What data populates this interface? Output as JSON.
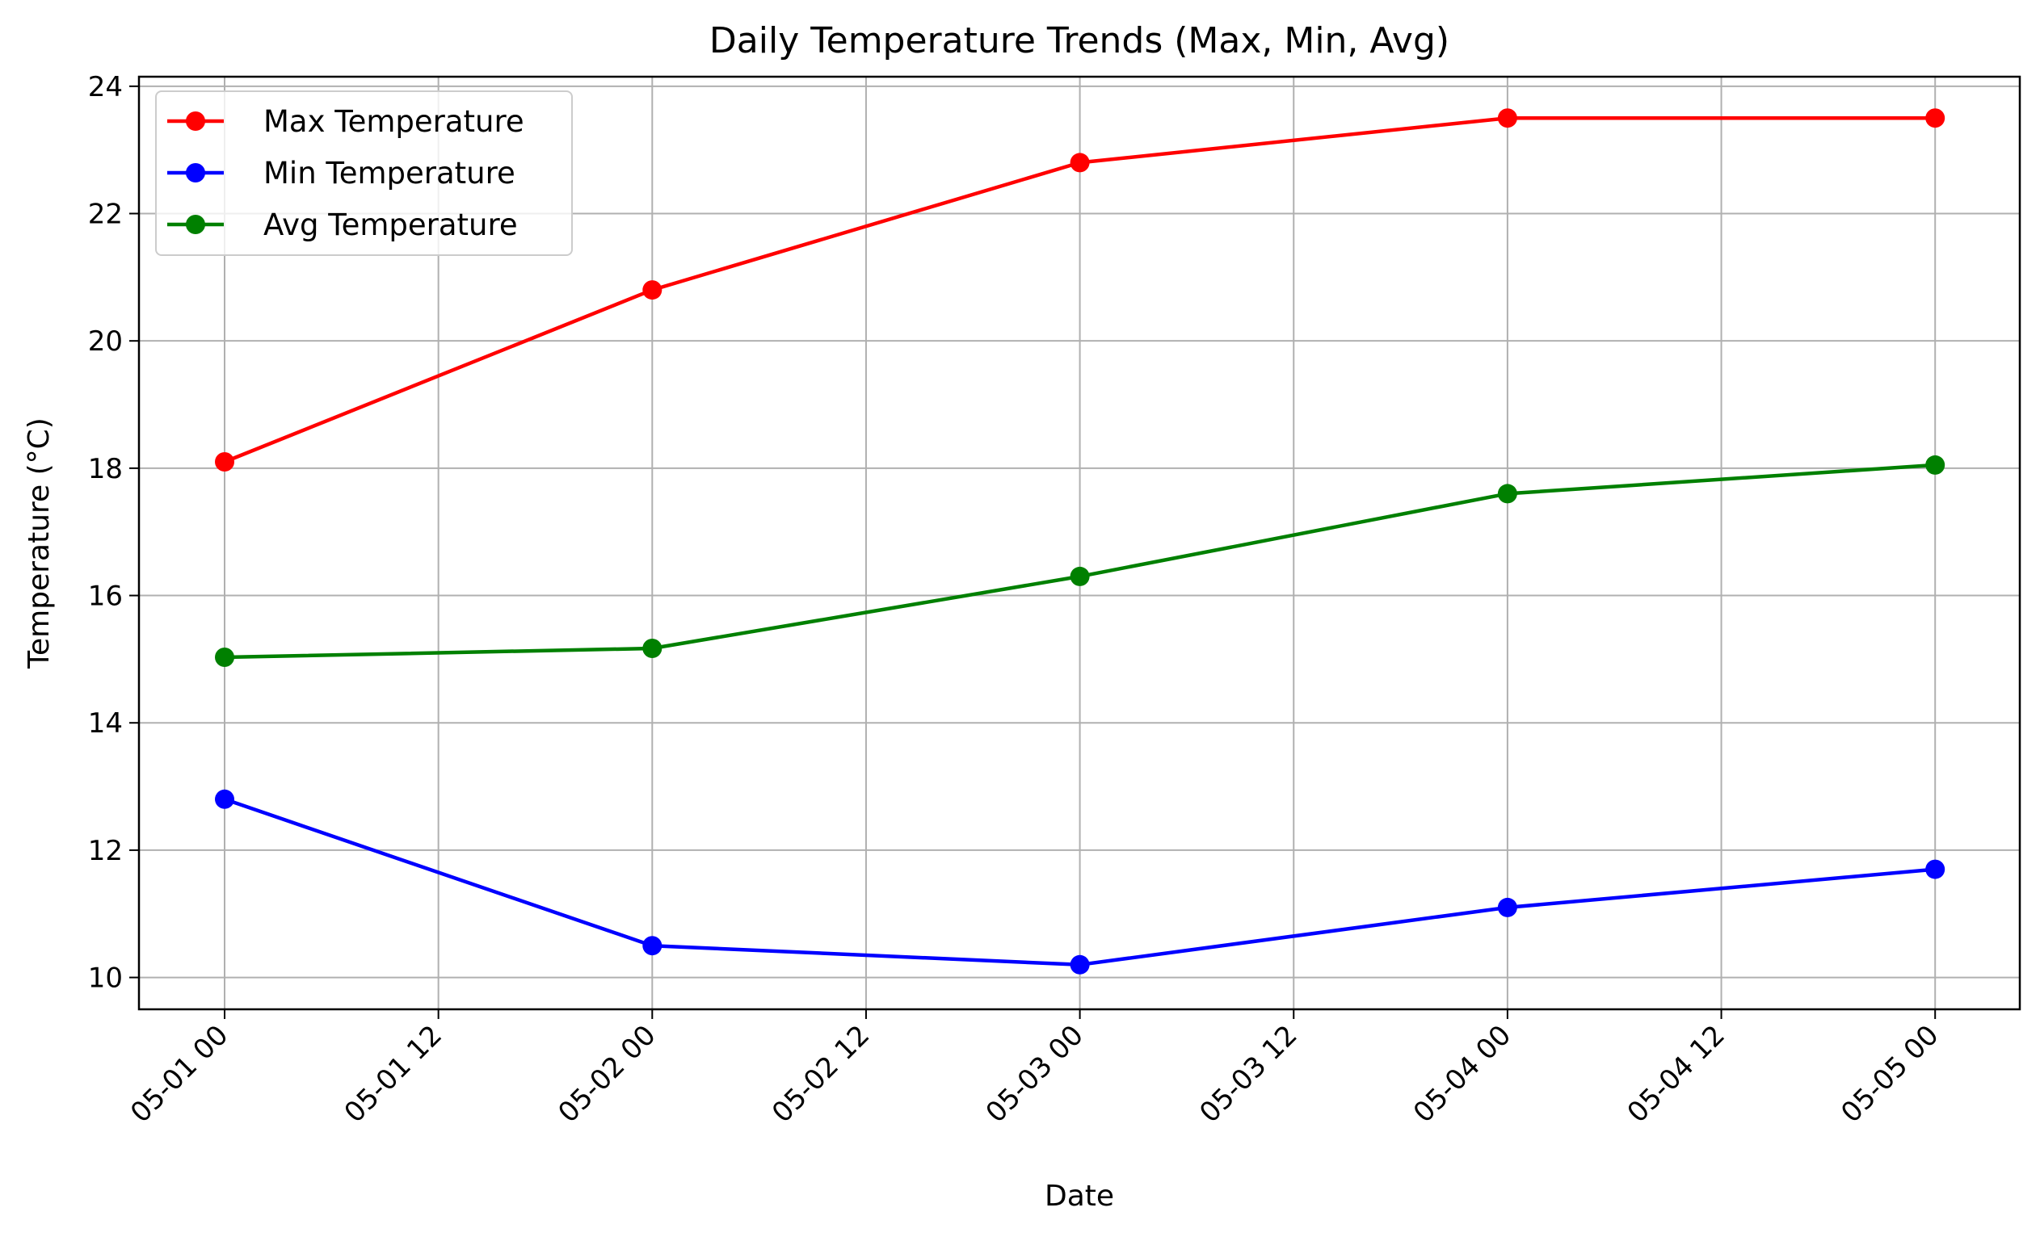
{
  "chart_data": {
    "type": "line",
    "title": "Daily Temperature Trends (Max, Min, Avg)",
    "xlabel": "Date",
    "ylabel": "Temperature (°C)",
    "x": [
      "2024-05-01 00:00",
      "2024-05-02 00:00",
      "2024-05-03 00:00",
      "2024-05-04 00:00",
      "2024-05-05 00:00"
    ],
    "x_ticks": [
      "05-01 00",
      "05-01 12",
      "05-02 00",
      "05-02 12",
      "05-03 00",
      "05-03 12",
      "05-04 00",
      "05-04 12",
      "05-05 00"
    ],
    "y_ticks": [
      10,
      12,
      14,
      16,
      18,
      20,
      22,
      24
    ],
    "ylim": [
      9.5,
      24.15
    ],
    "grid": true,
    "legend_position": "top-left",
    "series": [
      {
        "name": "Max Temperature",
        "color": "#ff0000",
        "marker": "circle",
        "values": [
          18.1,
          20.8,
          22.8,
          23.5,
          23.5
        ]
      },
      {
        "name": "Min Temperature",
        "color": "#0000ff",
        "marker": "circle",
        "values": [
          12.8,
          10.5,
          10.2,
          11.1,
          11.7
        ]
      },
      {
        "name": "Avg Temperature",
        "color": "#008000",
        "marker": "circle",
        "values": [
          15.03,
          15.17,
          16.3,
          17.6,
          18.05
        ]
      }
    ]
  }
}
